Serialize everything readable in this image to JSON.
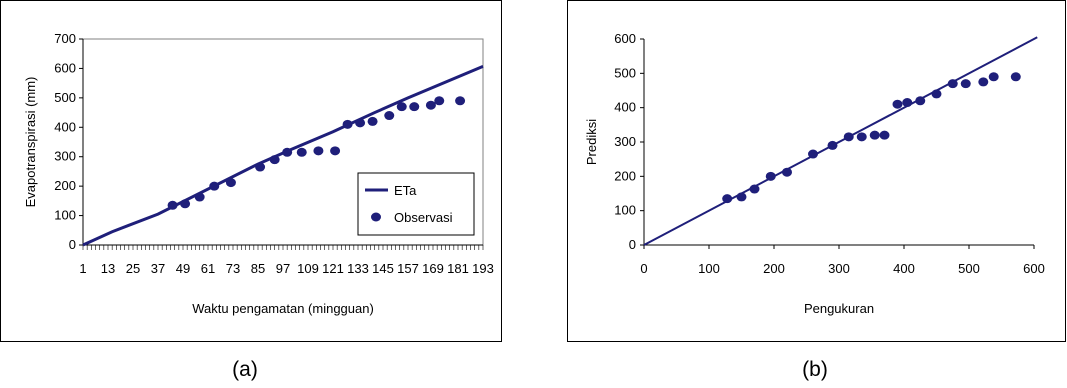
{
  "colors": {
    "series": "#1f1f7a",
    "axis": "#808080",
    "frame": "#000000"
  },
  "captions": {
    "a": "(a)",
    "b": "(b)"
  },
  "chart_data": [
    {
      "type": "line",
      "panel": "a",
      "title": "",
      "xlabel": "Waktu pengamatan (mingguan)",
      "ylabel": "Evapotranspirasi (mm)",
      "ylim": [
        0,
        700
      ],
      "yticks": [
        0,
        100,
        200,
        300,
        400,
        500,
        600,
        700
      ],
      "xlim": [
        1,
        193
      ],
      "xtick_labels": [
        "1",
        "13",
        "25",
        "37",
        "49",
        "61",
        "73",
        "85",
        "97",
        "109",
        "121",
        "133",
        "145",
        "157",
        "169",
        "181",
        "193"
      ],
      "grid": false,
      "legend_position": "bottom-right",
      "legend": [
        "ETa",
        "Observasi"
      ],
      "series": [
        {
          "name": "ETa",
          "type": "line",
          "x": [
            1,
            15,
            37,
            85,
            101,
            121,
            141,
            157,
            193
          ],
          "y": [
            0,
            45,
            105,
            275,
            325,
            385,
            450,
            500,
            607
          ]
        },
        {
          "name": "Observasi",
          "type": "scatter",
          "x": [
            44,
            50,
            57,
            64,
            72,
            86,
            93,
            99,
            106,
            114,
            122,
            128,
            134,
            140,
            148,
            154,
            160,
            168,
            172,
            182
          ],
          "y": [
            135,
            140,
            163,
            200,
            212,
            265,
            290,
            315,
            315,
            320,
            320,
            410,
            415,
            420,
            440,
            470,
            470,
            475,
            490,
            490
          ]
        }
      ]
    },
    {
      "type": "scatter",
      "panel": "b",
      "title": "",
      "xlabel": "Pengukuran",
      "ylabel": "Prediksi",
      "xlim": [
        0,
        600
      ],
      "ylim": [
        0,
        600
      ],
      "xticks": [
        0,
        100,
        200,
        300,
        400,
        500,
        600
      ],
      "yticks": [
        0,
        100,
        200,
        300,
        400,
        500,
        600
      ],
      "grid": false,
      "series": [
        {
          "type": "line",
          "x": [
            0,
            605
          ],
          "y": [
            0,
            605
          ]
        },
        {
          "type": "scatter",
          "x": [
            128,
            150,
            170,
            195,
            220,
            260,
            290,
            315,
            335,
            355,
            370,
            390,
            405,
            425,
            450,
            475,
            495,
            522,
            538,
            572
          ],
          "y": [
            135,
            140,
            163,
            200,
            212,
            265,
            290,
            315,
            315,
            320,
            320,
            410,
            415,
            420,
            440,
            470,
            470,
            475,
            490,
            490
          ]
        }
      ]
    }
  ]
}
